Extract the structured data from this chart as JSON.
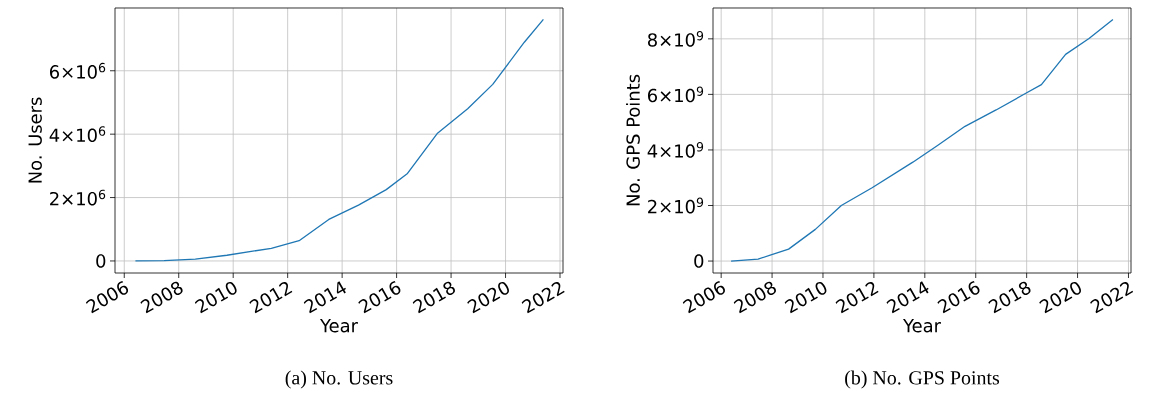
{
  "chart_data": [
    {
      "type": "line",
      "title": "(a) No. Users",
      "xlabel": "Year",
      "ylabel": "No. Users",
      "grid": true,
      "xlim": [
        2005.66,
        2022.11
      ],
      "ylim": [
        -380000,
        7980000
      ],
      "xticks": [
        2006,
        2008,
        2010,
        2012,
        2014,
        2016,
        2018,
        2020,
        2022
      ],
      "yticks": [
        {
          "value": 0,
          "label": "0"
        },
        {
          "value": 2000000,
          "label": "2×10$^{6}$"
        },
        {
          "value": 4000000,
          "label": "4×10$^{6}$"
        },
        {
          "value": 6000000,
          "label": "6×10$^{6}$"
        }
      ],
      "series": [
        {
          "color": "#1f77b4",
          "x": [
            2006.41,
            2007.46,
            2008.61,
            2009.77,
            2011.4,
            2012.42,
            2013.51,
            2014.6,
            2015.62,
            2016.4,
            2017.49,
            2018.61,
            2019.53,
            2020.69,
            2021.39
          ],
          "values": [
            0,
            10000,
            60000,
            180000,
            400000,
            640000,
            1310000,
            1760000,
            2250000,
            2760000,
            4020000,
            4800000,
            5570000,
            6900000,
            7620000
          ]
        }
      ]
    },
    {
      "type": "line",
      "title": "(b) No. GPS Points",
      "xlabel": "Year",
      "ylabel": "No. GPS Points",
      "grid": true,
      "xlim": [
        2005.68,
        2022.1
      ],
      "ylim": [
        -430000000,
        9110000000
      ],
      "xticks": [
        2006,
        2008,
        2010,
        2012,
        2014,
        2016,
        2018,
        2020,
        2022
      ],
      "yticks": [
        {
          "value": 0,
          "label": "0"
        },
        {
          "value": 2000000000,
          "label": "2×10$^{9}$"
        },
        {
          "value": 4000000000,
          "label": "4×10$^{9}$"
        },
        {
          "value": 6000000000,
          "label": "6×10$^{9}$"
        },
        {
          "value": 8000000000,
          "label": "8×10$^{9}$"
        }
      ],
      "series": [
        {
          "color": "#1f77b4",
          "x": [
            2006.39,
            2007.45,
            2008.65,
            2009.7,
            2010.72,
            2011.93,
            2013.53,
            2014.5,
            2015.58,
            2016.8,
            2017.95,
            2018.58,
            2019.53,
            2020.45,
            2021.39
          ],
          "values": [
            0,
            70000000,
            430000000,
            1140000000,
            2000000000,
            2640000000,
            3560000000,
            4160000000,
            4850000000,
            5440000000,
            6030000000,
            6350000000,
            7440000000,
            8010000000,
            8700000000
          ]
        }
      ]
    }
  ]
}
